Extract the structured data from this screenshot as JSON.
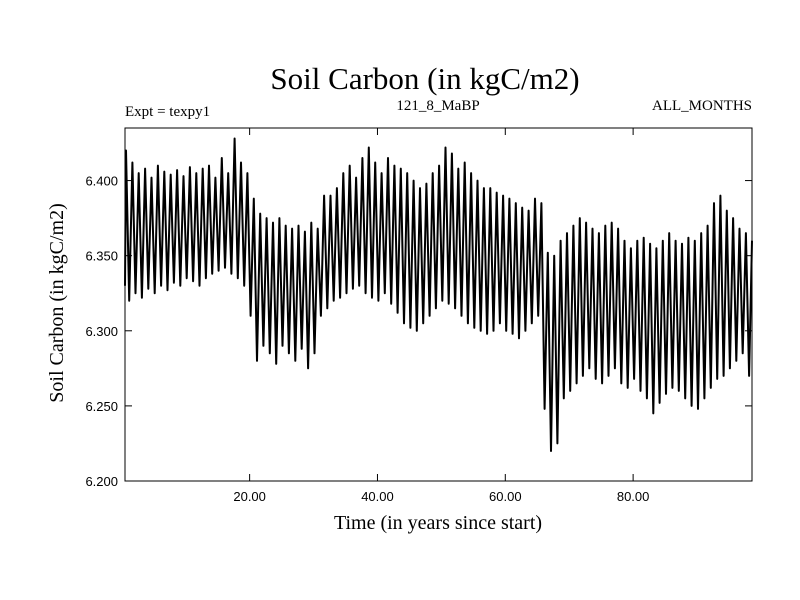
{
  "colors": {
    "background": "#ffffff",
    "line": "#000000",
    "axes": "#000000"
  },
  "chart_data": {
    "type": "line",
    "title": "Soil Carbon (in kgC/m2)",
    "subtitle_left": "Expt = texpy1",
    "subtitle_center": "121_8_MaBP",
    "subtitle_right": "ALL_MONTHS",
    "xlabel": "Time (in years since start)",
    "ylabel": "Soil Carbon (in kgC/m2)",
    "xlim": [
      0.5,
      98.6
    ],
    "ylim": [
      6.2,
      6.435
    ],
    "x_ticks": [
      20,
      40,
      60,
      80
    ],
    "x_tick_labels": [
      "20.00",
      "40.00",
      "60.00",
      "80.00"
    ],
    "y_ticks": [
      6.2,
      6.25,
      6.3,
      6.35,
      6.4
    ],
    "y_tick_labels": [
      "6.200",
      "6.250",
      "6.300",
      "6.350",
      "6.400"
    ],
    "grid": false,
    "legend": "none",
    "series": [
      {
        "x": [
          0.5,
          1.5,
          2.5,
          3.5,
          4.5,
          5.5,
          6.5,
          7.5,
          8.5,
          9.5,
          10.5,
          11.5,
          12.5,
          13.5,
          14.5,
          15.5,
          16.5,
          17.5,
          18.5,
          19.5,
          20.5,
          21.5,
          22.5,
          23.5,
          24.5,
          25.5,
          26.5,
          27.5,
          28.5,
          29.5,
          30.5,
          31.5,
          32.5,
          33.5,
          34.5,
          35.5,
          36.5,
          37.5,
          38.5,
          39.5,
          40.5,
          41.5,
          42.5,
          43.5,
          44.5,
          45.5,
          46.5,
          47.5,
          48.5,
          49.5,
          50.5,
          51.5,
          52.5,
          53.5,
          54.5,
          55.5,
          56.5,
          57.5,
          58.5,
          59.5,
          60.5,
          61.5,
          62.5,
          63.5,
          64.5,
          65.5,
          66.5,
          67.5,
          68.5,
          69.5,
          70.5,
          71.5,
          72.5,
          73.5,
          74.5,
          75.5,
          76.5,
          77.5,
          78.5,
          79.5,
          80.5,
          81.5,
          82.5,
          83.5,
          84.5,
          85.5,
          86.5,
          87.5,
          88.5,
          89.5,
          90.5,
          91.5,
          92.5,
          93.5,
          94.5,
          95.5,
          96.5,
          97.5,
          98.5
        ],
        "annual_max": [
          6.42,
          6.412,
          6.405,
          6.408,
          6.402,
          6.41,
          6.406,
          6.404,
          6.407,
          6.403,
          6.409,
          6.405,
          6.408,
          6.41,
          6.402,
          6.415,
          6.405,
          6.428,
          6.412,
          6.405,
          6.388,
          6.378,
          6.375,
          6.372,
          6.375,
          6.37,
          6.368,
          6.37,
          6.366,
          6.372,
          6.368,
          6.39,
          6.39,
          6.395,
          6.405,
          6.41,
          6.402,
          6.415,
          6.422,
          6.412,
          6.405,
          6.415,
          6.41,
          6.408,
          6.405,
          6.4,
          6.395,
          6.398,
          6.405,
          6.41,
          6.422,
          6.418,
          6.408,
          6.412,
          6.405,
          6.4,
          6.395,
          6.395,
          6.392,
          6.39,
          6.388,
          6.385,
          6.382,
          6.38,
          6.388,
          6.385,
          6.352,
          6.35,
          6.36,
          6.365,
          6.37,
          6.375,
          6.372,
          6.368,
          6.365,
          6.37,
          6.372,
          6.368,
          6.36,
          6.355,
          6.36,
          6.362,
          6.358,
          6.355,
          6.36,
          6.365,
          6.36,
          6.358,
          6.362,
          6.36,
          6.365,
          6.37,
          6.385,
          6.39,
          6.38,
          6.375,
          6.368,
          6.365,
          6.36
        ],
        "annual_min": [
          6.33,
          6.32,
          6.325,
          6.322,
          6.328,
          6.325,
          6.33,
          6.327,
          6.332,
          6.33,
          6.335,
          6.333,
          6.33,
          6.335,
          6.338,
          6.34,
          6.342,
          6.338,
          6.335,
          6.33,
          6.31,
          6.28,
          6.29,
          6.285,
          6.278,
          6.29,
          6.285,
          6.28,
          6.288,
          6.275,
          6.285,
          6.31,
          6.315,
          6.32,
          6.322,
          6.325,
          6.328,
          6.33,
          6.325,
          6.322,
          6.32,
          6.325,
          6.318,
          6.312,
          6.305,
          6.302,
          6.3,
          6.305,
          6.31,
          6.315,
          6.32,
          6.318,
          6.315,
          6.31,
          6.305,
          6.302,
          6.3,
          6.298,
          6.3,
          6.305,
          6.3,
          6.298,
          6.295,
          6.3,
          6.305,
          6.31,
          6.248,
          6.22,
          6.225,
          6.255,
          6.26,
          6.265,
          6.27,
          6.275,
          6.268,
          6.265,
          6.27,
          6.275,
          6.265,
          6.262,
          6.268,
          6.26,
          6.255,
          6.245,
          6.252,
          6.258,
          6.262,
          6.26,
          6.255,
          6.25,
          6.248,
          6.255,
          6.262,
          6.268,
          6.27,
          6.275,
          6.28,
          6.285,
          6.27
        ]
      }
    ]
  }
}
